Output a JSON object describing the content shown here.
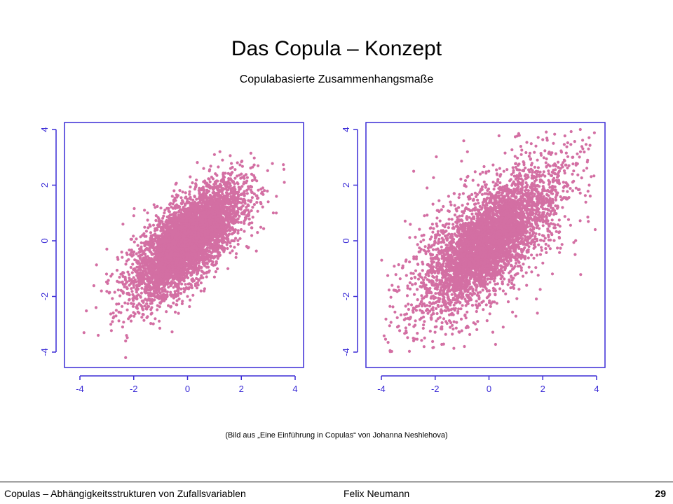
{
  "slide": {
    "title": "Das Copula – Konzept",
    "subtitle": "Copulabasierte Zusammenhangsmaße",
    "caption": "(Bild aus „Eine Einführung in Copulas“ von Johanna Neshlehova)"
  },
  "footer": {
    "left": "Copulas – Abhängigkeitsstrukturen von Zufallsvariablen",
    "author": "Felix Neumann",
    "page": "29"
  },
  "colors": {
    "axis": "#3a2bd6",
    "points": "#d36fa3"
  },
  "chart_data": [
    {
      "type": "scatter",
      "dependence": "gaussian",
      "correlation": 0.7,
      "n_points": 5000,
      "xlim": [
        -4,
        4
      ],
      "ylim": [
        -4,
        4
      ],
      "xticks": [
        -4,
        -2,
        0,
        2,
        4
      ],
      "yticks": [
        -4,
        -2,
        0,
        2,
        4
      ],
      "grid": false,
      "points": [
        [
          -3.85,
          -3.3
        ],
        [
          -2.85,
          -3.0
        ],
        [
          -2.3,
          -4.2
        ],
        [
          -2.3,
          -3.6
        ],
        [
          -3.4,
          -2.4
        ],
        [
          -3.2,
          -1.8
        ],
        [
          -2.8,
          -1.2
        ],
        [
          -2.6,
          -0.6
        ],
        [
          -2.2,
          -2.8
        ],
        [
          -1.8,
          -2.6
        ],
        [
          -1.5,
          -2.4
        ],
        [
          -1.2,
          -2.8
        ],
        [
          -3.0,
          -0.3
        ],
        [
          -2.4,
          0.6
        ],
        [
          -2.0,
          0.9
        ],
        [
          -1.6,
          1.1
        ],
        [
          -1.2,
          1.2
        ],
        [
          -0.5,
          1.8
        ],
        [
          0.1,
          2.3
        ],
        [
          0.6,
          2.6
        ],
        [
          1.0,
          3.1
        ],
        [
          1.3,
          2.9
        ],
        [
          1.6,
          2.6
        ],
        [
          2.0,
          2.4
        ],
        [
          2.5,
          2.2
        ],
        [
          2.8,
          1.9
        ],
        [
          3.3,
          1.0
        ],
        [
          3.6,
          2.1
        ],
        [
          3.0,
          1.4
        ],
        [
          2.6,
          0.3
        ],
        [
          2.2,
          -0.2
        ],
        [
          1.8,
          -0.6
        ],
        [
          1.5,
          -1.0
        ],
        [
          1.0,
          -1.3
        ],
        [
          0.5,
          -1.8
        ],
        [
          0.0,
          -2.0
        ],
        [
          -0.4,
          -2.3
        ],
        [
          -0.9,
          -2.0
        ],
        [
          2.2,
          0.9
        ],
        [
          1.5,
          1.5
        ],
        [
          -1.0,
          -1.4
        ],
        [
          -1.4,
          -0.9
        ],
        [
          0.4,
          0.3
        ]
      ]
    },
    {
      "type": "scatter",
      "dependence": "tail-dependent",
      "correlation": 0.7,
      "n_points": 5000,
      "xlim": [
        -4,
        4
      ],
      "ylim": [
        -4,
        4
      ],
      "xticks": [
        -4,
        -2,
        0,
        2,
        4
      ],
      "yticks": [
        -4,
        -2,
        0,
        2,
        4
      ],
      "grid": false,
      "points": [
        [
          -3.75,
          -3.65
        ],
        [
          -3.4,
          -3.1
        ],
        [
          -3.1,
          -2.8
        ],
        [
          -2.7,
          -2.5
        ],
        [
          -2.4,
          -2.9
        ],
        [
          -2.0,
          -3.1
        ],
        [
          -1.6,
          -2.9
        ],
        [
          -3.6,
          -1.6
        ],
        [
          -3.2,
          -0.9
        ],
        [
          -2.6,
          -0.4
        ],
        [
          -2.4,
          0.9
        ],
        [
          -2.1,
          0.6
        ],
        [
          -2.8,
          2.5
        ],
        [
          -2.3,
          1.9
        ],
        [
          -1.5,
          1.6
        ],
        [
          -0.8,
          3.2
        ],
        [
          -0.4,
          2.0
        ],
        [
          0.4,
          2.6
        ],
        [
          1.2,
          3.1
        ],
        [
          1.8,
          2.9
        ],
        [
          2.3,
          3.1
        ],
        [
          2.8,
          2.9
        ],
        [
          3.1,
          3.0
        ],
        [
          3.4,
          3.2
        ],
        [
          3.7,
          3.3
        ],
        [
          2.6,
          2.1
        ],
        [
          2.2,
          1.1
        ],
        [
          2.6,
          0.3
        ],
        [
          2.0,
          -0.8
        ],
        [
          1.8,
          -2.6
        ],
        [
          1.4,
          -1.6
        ],
        [
          0.8,
          -1.1
        ],
        [
          0.2,
          -2.2
        ],
        [
          -0.6,
          -1.8
        ],
        [
          -1.2,
          -2.1
        ],
        [
          -1.7,
          -1.3
        ],
        [
          -1.0,
          -0.6
        ],
        [
          0.6,
          0.8
        ],
        [
          1.4,
          1.4
        ],
        [
          -0.1,
          -0.1
        ]
      ]
    }
  ]
}
